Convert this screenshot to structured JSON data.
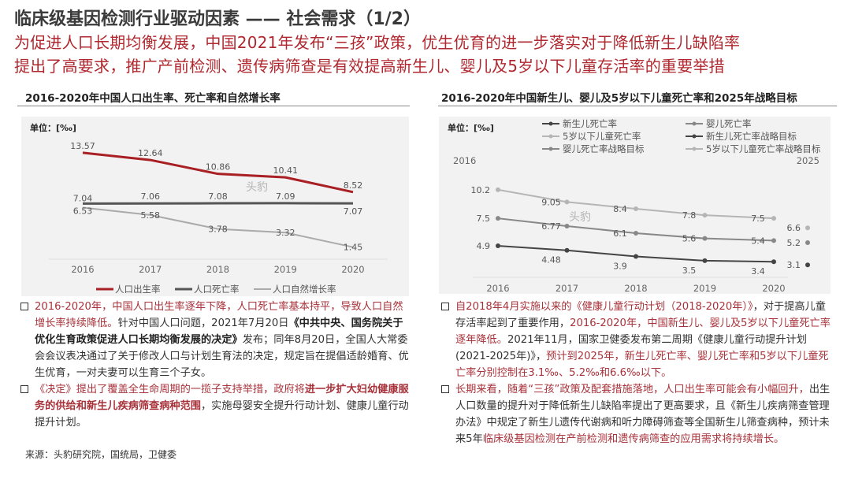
{
  "header": {
    "title": "临床级基因检测行业驱动因素 —— 社会需求（1/2）",
    "subtitle_lines": [
      "为促进人口长期均衡发展，中国2021年发布“三孩”政策，优生优育的进一步落实对于降低新生儿缺陷率",
      "提出了高要求，推广产前检测、遗传病筛查是有效提高新生儿、婴儿及5岁以下儿童存活率的重要举措"
    ]
  },
  "watermark": "头豹",
  "chart_data": [
    {
      "type": "line",
      "title": "2016-2020年中国人口出生率、死亡率和自然增长率",
      "unit": "单位：[‰]",
      "categories": [
        "2016",
        "2017",
        "2018",
        "2019",
        "2020"
      ],
      "ylim": [
        0,
        17
      ],
      "grid": false,
      "legend": "bottom",
      "series": [
        {
          "name": "人口出生率",
          "values": [
            13.57,
            12.64,
            10.86,
            10.41,
            8.52
          ],
          "color": "#a81f24",
          "labels": [
            "13.57",
            "12.64",
            "10.86",
            "10.41",
            "8.52"
          ]
        },
        {
          "name": "人口死亡率",
          "values": [
            7.04,
            7.06,
            7.08,
            7.09,
            7.07
          ],
          "color": "#555555",
          "labels": [
            "7.04",
            "7.06",
            "7.08",
            "7.09",
            "7.07"
          ]
        },
        {
          "name": "人口自然增长率",
          "values": [
            6.53,
            5.58,
            3.78,
            3.32,
            1.45
          ],
          "color": "#aaaaaa",
          "labels": [
            "6.53",
            "5.58",
            "3.78",
            "3.32",
            "1.45"
          ]
        }
      ]
    },
    {
      "type": "line",
      "title": "2016-2020年中国新生儿、婴儿及5岁以下儿童死亡率和2025年战略目标",
      "unit": "单位：[‰]",
      "categories": [
        "2016",
        "2017",
        "2018",
        "2019",
        "2020"
      ],
      "corner_labels": [
        "2016",
        "2025"
      ],
      "ylim": [
        2,
        12.5
      ],
      "grid": false,
      "legend": "top",
      "series": [
        {
          "name": "新生儿死亡率",
          "values": [
            4.9,
            4.48,
            3.9,
            3.5,
            3.4
          ],
          "color": "#444444",
          "labels": [
            "4.9",
            "4.48",
            "3.9",
            "3.5",
            "3.4"
          ]
        },
        {
          "name": "婴儿死亡率",
          "values": [
            7.5,
            6.77,
            6.1,
            5.6,
            5.4
          ],
          "color": "#888888",
          "labels": [
            "7.5",
            "6.77",
            "6.1",
            "5.6",
            "5.4"
          ]
        },
        {
          "name": "5岁以下儿童死亡率",
          "values": [
            10.2,
            9.05,
            8.4,
            7.8,
            7.5
          ],
          "color": "#b5b5b5",
          "labels": [
            "10.2",
            "9.05",
            "8.4",
            "7.8",
            "7.5"
          ]
        }
      ],
      "targets": [
        {
          "name": "新生儿死亡率战略目标",
          "year": "2025",
          "value": 3.1,
          "label": "3.1",
          "color": "#444444"
        },
        {
          "name": "婴儿死亡率战略目标",
          "year": "2025",
          "value": 5.2,
          "label": "5.2",
          "color": "#888888"
        },
        {
          "name": "5岁以下儿童死亡率战略目标",
          "year": "2025",
          "value": 6.6,
          "label": "6.6",
          "color": "#b5b5b5"
        }
      ]
    }
  ],
  "left_text": [
    [
      {
        "t": "2016-2020年，中国人口出生率逐年下降，人口死亡率基本持平，导致人口自然增长率持续降低。",
        "s": "red"
      },
      {
        "t": "针对中国人口问题，2021年7月20日",
        "s": ""
      },
      {
        "t": "《中共中央、国务院关于优化生育政策促进人口长期均衡发展的决定》",
        "s": "bold"
      },
      {
        "t": "发布；同年8月20日，全国人大常委会会议表决通过了关于修改人口与计划生育法的决定，规定旨在提倡适龄婚育、优生优育，一对夫妻可以生育三个子女。",
        "s": ""
      }
    ],
    [
      {
        "t": "《决定》提出了覆盖全生命周期的一揽子支持举措，政府将",
        "s": "red"
      },
      {
        "t": "进一步扩大妇幼健康服务的供给和新生儿疾病筛查病种范围",
        "s": "red-bold"
      },
      {
        "t": "，实施母婴安全提升行动计划、健康儿童行动提升计划。",
        "s": ""
      }
    ]
  ],
  "right_text": [
    [
      {
        "t": "自2018年4月实施以来的《健康儿童行动计划（2018-2020年）》",
        "s": "red"
      },
      {
        "t": "，对于提高儿童存活率起到了重要作用，",
        "s": ""
      },
      {
        "t": "2016-2020年，中国新生儿、婴儿及5岁以下儿童死亡率逐年降低。",
        "s": "red"
      },
      {
        "t": "2021年11月，国家卫健委发布第二周期《健康儿童行动提升计划(2021-2025年)》，",
        "s": ""
      },
      {
        "t": "预计到2025年，新生儿死亡率、婴儿死亡率和5岁以下儿童死亡率分别控制在3.1‰、5.2‰和6.6‰以下。",
        "s": "red"
      }
    ],
    [
      {
        "t": "长期来看，随着“三孩”政策及配套措施落地，人口出生率可能会有小幅回升，",
        "s": "red"
      },
      {
        "t": "出生人口数量的提升对于降低新生儿缺陷率提出了更高要求，且《新生儿疾病筛查管理办法》中规定了新生儿遗传代谢病和听力障碍筛查等全国新生儿筛查病种，预计未来5年",
        "s": ""
      },
      {
        "t": "临床级基因检测在产前检测和遗传病筛查的应用需求将持续增长。",
        "s": "red"
      }
    ]
  ],
  "source": "来源：头豹研究院，国统局，卫健委"
}
